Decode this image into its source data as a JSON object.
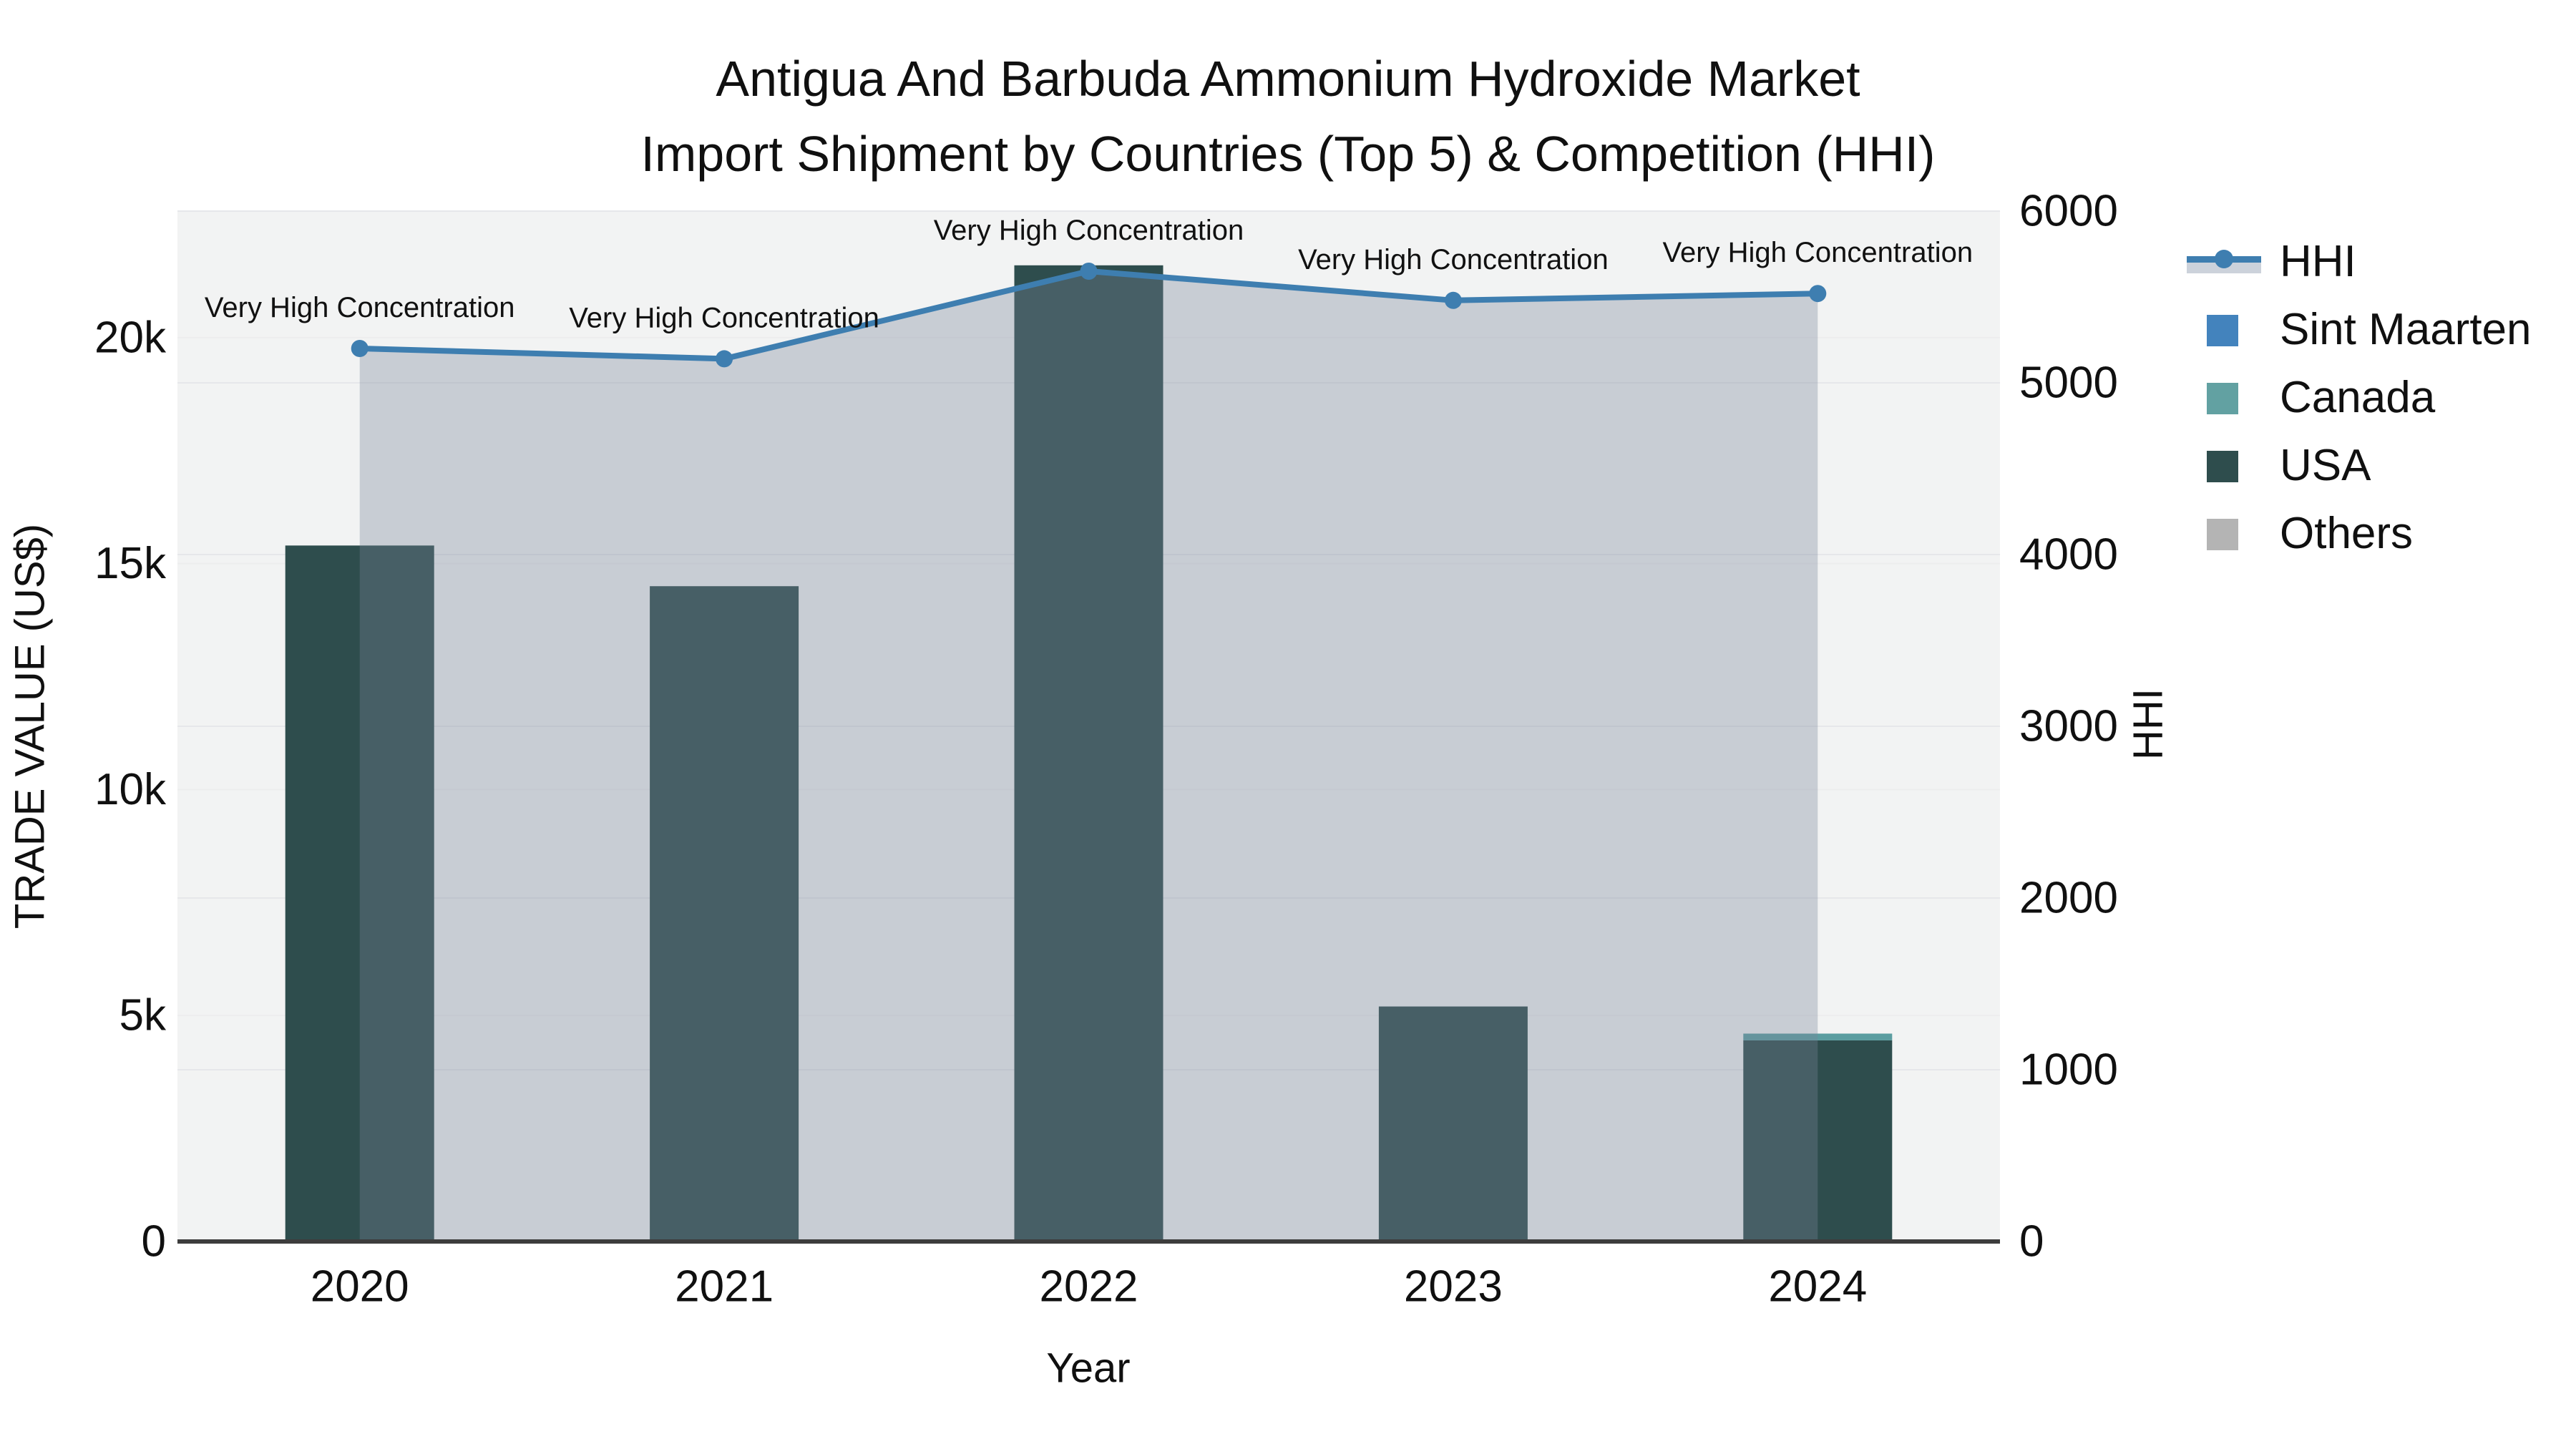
{
  "title": {
    "line1": "Antigua And Barbuda Ammonium Hydroxide Market",
    "line2": "Import Shipment by Countries (Top 5) & Competition (HHI)"
  },
  "legend": [
    {
      "label": "HHI",
      "type": "line",
      "color": "#3e7eb0"
    },
    {
      "label": "Sint Maarten",
      "type": "square",
      "color": "#4383bd"
    },
    {
      "label": "Canada",
      "type": "square",
      "color": "#62a1a2"
    },
    {
      "label": "USA",
      "type": "square",
      "color": "#2e4d4d"
    },
    {
      "label": "Others",
      "type": "square",
      "color": "#b4b4b4"
    }
  ],
  "chart_data": {
    "type": "bar+line",
    "categories": [
      "2020",
      "2021",
      "2022",
      "2023",
      "2024"
    ],
    "x_label": "Year",
    "stack_series": [
      {
        "name": "USA",
        "color": "#2e4d4d",
        "values": [
          15400,
          14500,
          21600,
          5200,
          4450
        ]
      },
      {
        "name": "Canada",
        "color": "#5b9da0",
        "values": [
          0,
          0,
          0,
          0,
          150
        ]
      },
      {
        "name": "Sint Maarten",
        "color": "#4383bd",
        "values": [
          0,
          0,
          0,
          0,
          0
        ]
      },
      {
        "name": "Others",
        "color": "#b4b4b4",
        "values": [
          0,
          0,
          0,
          0,
          0
        ]
      }
    ],
    "line_series": {
      "name": "HHI",
      "axis": "right",
      "color": "#3e7eb0",
      "fill_color": "rgba(120,131,152,0.34)",
      "values": [
        5200,
        5140,
        5650,
        5480,
        5520
      ],
      "point_annotation": "Very High Concentration"
    },
    "y_left": {
      "label": "TRADE VALUE (US$)",
      "tick_values": [
        0,
        5000,
        10000,
        15000,
        20000
      ],
      "tick_labels": [
        "0",
        "5k",
        "10k",
        "15k",
        "20k"
      ],
      "range": [
        0,
        22800
      ]
    },
    "y_right": {
      "label": "HHI",
      "tick_values": [
        0,
        1000,
        2000,
        3000,
        4000,
        5000,
        6000
      ],
      "tick_labels": [
        "0",
        "1000",
        "2000",
        "3000",
        "4000",
        "5000",
        "6000"
      ],
      "range": [
        0,
        6000
      ]
    },
    "grid": true,
    "legend_position": "right",
    "plot_bg": "#f2f3f3",
    "axis_line_color": "#3d3d3d",
    "grid_color_right": "#e6e7ea",
    "grid_color_left": "#ededee"
  }
}
